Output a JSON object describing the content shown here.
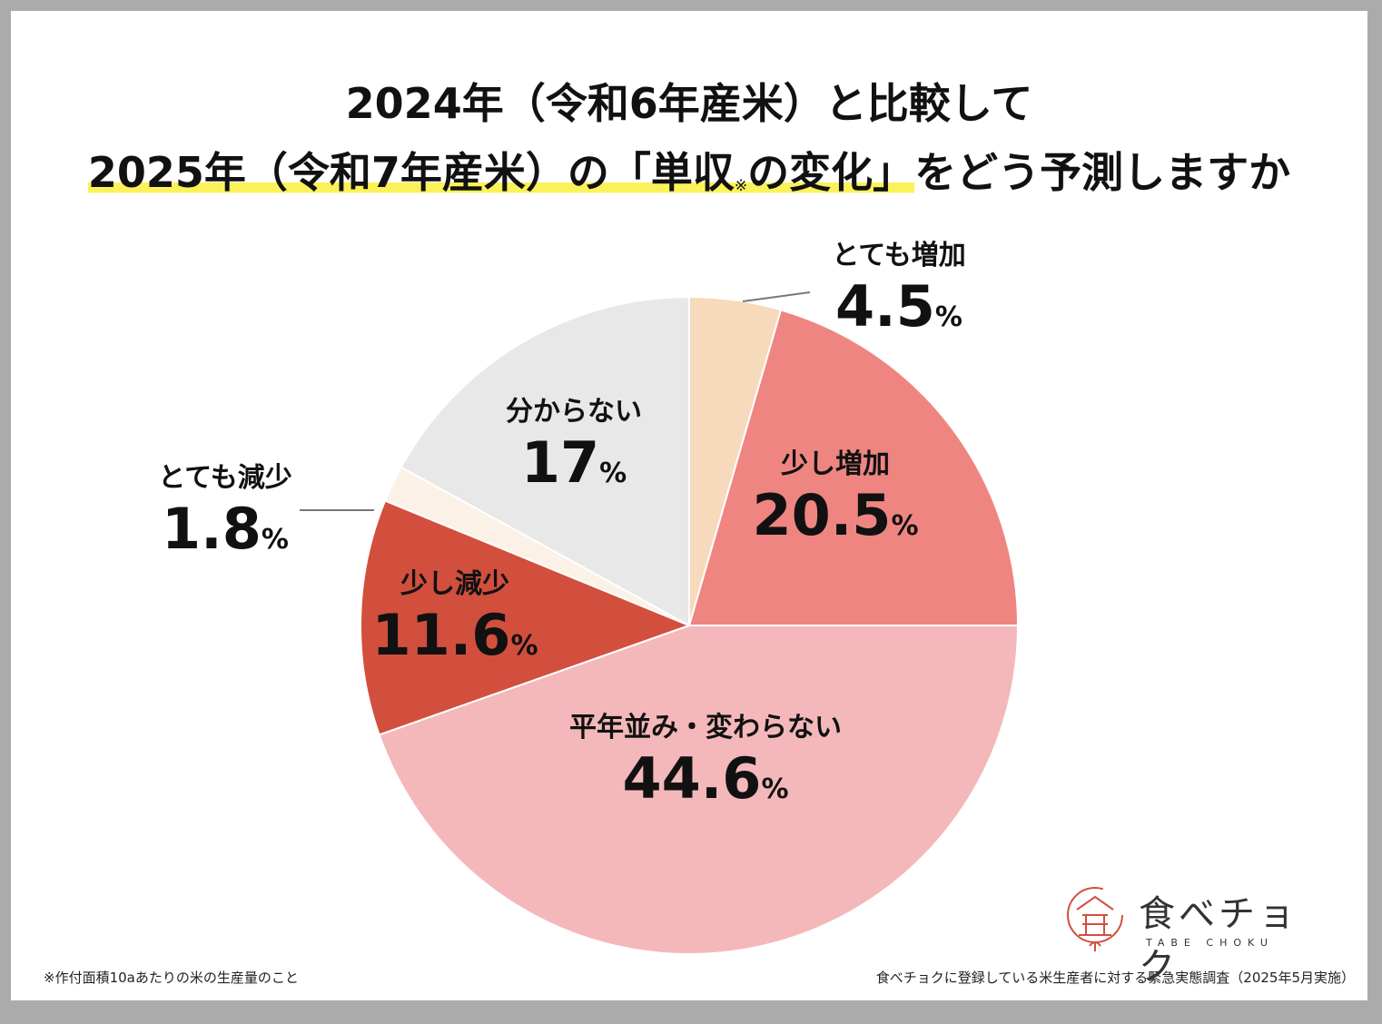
{
  "title_line1": "2024年（令和6年産米）と比較して",
  "title_line2_highlight": "2025年（令和7年産米）の「単収",
  "title_mark": "※",
  "title_line2_highlight_rest": "の変化」",
  "title_line2_rest": "をどう予測しますか",
  "footnote": "※作付面積10aあたりの米の生産量のこと",
  "source": "食べチョクに登録している米生産者に対する緊急実態調査（2025年5月実施）",
  "logo": {
    "name": "食べチョク",
    "sub": "TABE CHOKU",
    "icon": "rice-bowl-logo-icon"
  },
  "percent_sign": "%",
  "colors": {
    "とても増加": "#f7d9bb",
    "少し増加": "#ef8581",
    "平年並み・変わらない": "#f4b8ba",
    "少し減少": "#d24f3e",
    "とても減少": "#fcf1e6",
    "分からない": "#e8e8e8",
    "highlight": "#fbf25a"
  },
  "chart_data": {
    "type": "pie",
    "title": "2024年（令和6年産米）と比較して 2025年（令和7年産米）の「単収※の変化」をどう予測しますか",
    "categories": [
      "とても増加",
      "少し増加",
      "平年並み・変わらない",
      "少し減少",
      "とても減少",
      "分からない"
    ],
    "values": [
      4.5,
      20.5,
      44.6,
      11.6,
      1.8,
      17
    ],
    "labels": [
      "4.5",
      "20.5",
      "44.6",
      "11.6",
      "1.8",
      "17"
    ],
    "unit": "%",
    "start": "12 o'clock",
    "direction": "clockwise"
  }
}
